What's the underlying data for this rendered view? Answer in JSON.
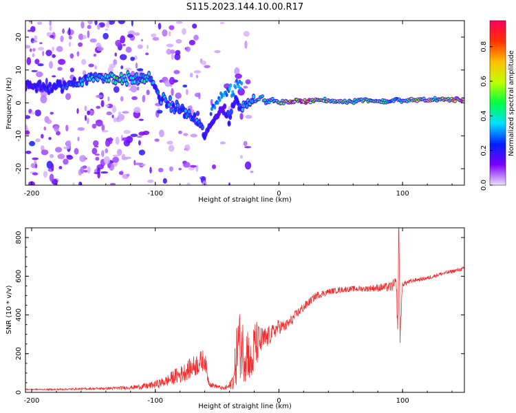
{
  "title": "S115.2023.144.10.00.R17",
  "chart_data": [
    {
      "type": "heatmap",
      "xlabel": "Height of straight line (km)",
      "ylabel": "Frequency (Hz)",
      "xlim": [
        -205,
        150
      ],
      "ylim": [
        -25,
        25
      ],
      "xticks": [
        -200,
        -100,
        0,
        100
      ],
      "yticks": [
        -20,
        -10,
        0,
        10,
        20
      ],
      "colorbar": {
        "label": "Normalized spectral amplitude",
        "range": [
          0,
          0.95
        ],
        "ticks": [
          "0.0",
          "0.2",
          "0.4",
          "0.6",
          "0.8"
        ],
        "colormap": [
          "#eee0ff",
          "#7a00ff",
          "#0020ff",
          "#00e0ff",
          "#00ff40",
          "#c0ff00",
          "#ffc000",
          "#ff3000",
          "#ff0060"
        ]
      },
      "ridge": {
        "x": [
          -203,
          -195,
          -185,
          -175,
          -160,
          -145,
          -130,
          -115,
          -105,
          -100,
          -95,
          -85,
          -75,
          -65,
          -60,
          -55,
          -50,
          -45,
          -40,
          -35,
          -32,
          -28,
          -25,
          -20,
          -15,
          -10,
          -5,
          0,
          10,
          20,
          30,
          40,
          50,
          60,
          70,
          80,
          90,
          95,
          100,
          110,
          120,
          130,
          140,
          150
        ],
        "freq": [
          6,
          5,
          4.5,
          5,
          7,
          8,
          7.5,
          7,
          8,
          4,
          1,
          -1,
          -3,
          -6,
          -10,
          -7,
          -3,
          -2,
          -5,
          2,
          -2,
          0,
          1,
          0.5,
          2,
          0,
          1,
          0,
          0.5,
          0.5,
          1,
          0.5,
          0.5,
          0.5,
          1,
          0.5,
          0.5,
          1,
          0.5,
          1,
          1,
          1,
          1,
          1
        ],
        "amplitude": [
          0.2,
          0.2,
          0.25,
          0.25,
          0.3,
          0.4,
          0.45,
          0.4,
          0.4,
          0.3,
          0.3,
          0.3,
          0.3,
          0.3,
          0.25,
          0.2,
          0.15,
          0.15,
          0.3,
          0.2,
          0.25,
          0.35,
          0.35,
          0.4,
          0.4,
          0.45,
          0.45,
          0.5,
          0.75,
          0.8,
          0.6,
          0.55,
          0.55,
          0.5,
          0.5,
          0.55,
          0.4,
          0.35,
          0.5,
          0.55,
          0.6,
          0.55,
          0.7,
          0.75
        ]
      }
    },
    {
      "type": "line",
      "xlabel": "Height of straight line (km)",
      "ylabel": "SNR (10 * v/v)",
      "xlim": [
        -205,
        150
      ],
      "ylim": [
        0,
        850
      ],
      "xticks": [
        -200,
        -100,
        0,
        100
      ],
      "yticks": [
        0,
        200,
        400,
        600,
        800
      ],
      "color": "#f03030",
      "series": [
        {
          "x": [
            -205,
            -180,
            -160,
            -140,
            -120,
            -110,
            -100,
            -95,
            -90,
            -85,
            -80,
            -75,
            -70,
            -65,
            -60,
            -57,
            -55,
            -50,
            -45,
            -40,
            -36,
            -35,
            -33,
            -30,
            -28,
            -25,
            -22,
            -20,
            -18,
            -15,
            -10,
            -5,
            0,
            5,
            10,
            15,
            20,
            25,
            30,
            40,
            50,
            60,
            70,
            80,
            90,
            95,
            96,
            97,
            98,
            100,
            110,
            120,
            130,
            140,
            150
          ],
          "y": [
            15,
            15,
            18,
            20,
            25,
            30,
            40,
            50,
            60,
            80,
            90,
            110,
            130,
            150,
            170,
            60,
            40,
            30,
            20,
            30,
            80,
            170,
            250,
            240,
            200,
            220,
            120,
            240,
            250,
            260,
            280,
            310,
            340,
            340,
            370,
            410,
            440,
            470,
            500,
            520,
            530,
            535,
            535,
            540,
            545,
            560,
            300,
            850,
            300,
            560,
            580,
            590,
            610,
            625,
            640
          ],
          "noise": [
            3,
            4,
            5,
            6,
            10,
            15,
            20,
            25,
            30,
            40,
            45,
            50,
            55,
            60,
            55,
            25,
            15,
            10,
            10,
            20,
            60,
            150,
            180,
            170,
            150,
            150,
            80,
            150,
            120,
            80,
            60,
            40,
            40,
            30,
            30,
            25,
            25,
            20,
            20,
            15,
            15,
            15,
            15,
            20,
            25,
            40,
            60,
            60,
            60,
            15,
            10,
            10,
            10,
            10,
            10
          ]
        }
      ]
    }
  ]
}
